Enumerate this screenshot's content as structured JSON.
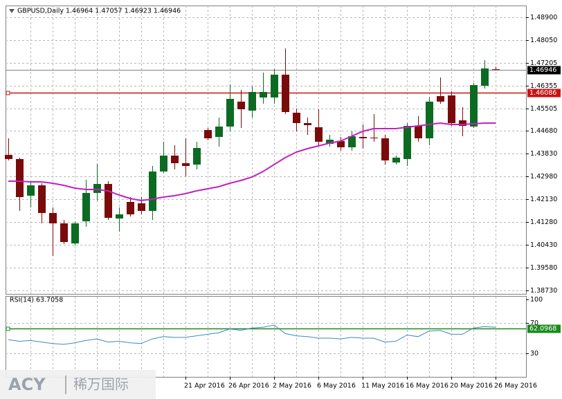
{
  "chart_data": {
    "type": "candlestick",
    "title": "GBPUSD,Daily  1.46964 1.47057 1.46923 1.46946",
    "categories": [
      null,
      null,
      null,
      null,
      null,
      null,
      null,
      null,
      null,
      null,
      null,
      null,
      null,
      null,
      null,
      null,
      "21 Apr 2016",
      null,
      null,
      null,
      "26 Apr 2016",
      null,
      null,
      null,
      "2 May 2016",
      null,
      null,
      null,
      "6 May 2016",
      null,
      null,
      null,
      "11 May 2016",
      null,
      null,
      null,
      "16 May 2016",
      null,
      null,
      null,
      "20 May 2016",
      null,
      null,
      null,
      "26 May 2016"
    ],
    "open": [
      1.43774,
      1.4362,
      1.42254,
      1.42641,
      1.4161,
      1.41224,
      1.40477,
      1.41301,
      1.42357,
      1.42692,
      1.41404,
      1.42023,
      1.41971,
      1.41688,
      1.43156,
      1.43748,
      1.43465,
      1.43414,
      1.44701,
      1.44444,
      1.4483,
      1.45758,
      1.45423,
      1.45912,
      1.45912,
      1.46762,
      1.45345,
      1.44959,
      1.44804,
      1.44186,
      1.44289,
      1.44057,
      1.44444,
      1.44418,
      1.44392,
      1.43491,
      1.4362,
      1.44856,
      1.44392,
      1.45964,
      1.45989,
      1.45062,
      1.4483,
      1.4635,
      1.46964
    ],
    "high": [
      1.44392,
      1.43671,
      1.42795,
      1.42718,
      1.41817,
      1.41353,
      1.41301,
      1.42847,
      1.43439,
      1.42795,
      1.41817,
      1.42203,
      1.42203,
      1.43362,
      1.44264,
      1.44135,
      1.44392,
      1.44264,
      1.44779,
      1.45165,
      1.46401,
      1.46195,
      1.46324,
      1.46839,
      1.46968,
      1.47741,
      1.455,
      1.45165,
      1.45474,
      1.44521,
      1.44444,
      1.4465,
      1.44908,
      1.45294,
      1.44521,
      1.43748,
      1.44959,
      1.45217,
      1.45938,
      1.46659,
      1.46144,
      1.45551,
      1.46453,
      1.47303,
      1.47057
    ],
    "low": [
      1.43568,
      1.41688,
      1.41817,
      1.41224,
      1.40013,
      1.40451,
      1.404,
      1.41095,
      1.42074,
      1.41353,
      1.40915,
      1.41482,
      1.41559,
      1.41353,
      1.43104,
      1.43233,
      1.42976,
      1.43233,
      1.44315,
      1.44083,
      1.4465,
      1.44779,
      1.45165,
      1.4568,
      1.4568,
      1.45294,
      1.4465,
      1.44521,
      1.44135,
      1.44083,
      1.43929,
      1.43929,
      1.44006,
      1.44264,
      1.43414,
      1.43414,
      1.43362,
      1.44264,
      1.44135,
      1.4568,
      1.44856,
      1.4447,
      1.44779,
      1.46247,
      1.46923
    ],
    "close": [
      1.4362,
      1.42203,
      1.42641,
      1.4161,
      1.41224,
      1.40529,
      1.41224,
      1.42357,
      1.42692,
      1.4143,
      1.41559,
      1.41559,
      1.41688,
      1.43156,
      1.43748,
      1.43465,
      1.43362,
      1.44032,
      1.44392,
      1.4483,
      1.45861,
      1.45474,
      1.46118,
      1.46118,
      1.46762,
      1.45371,
      1.44959,
      1.44882,
      1.44264,
      1.44341,
      1.44057,
      1.4447,
      1.44392,
      1.44392,
      1.43568,
      1.43671,
      1.44856,
      1.44392,
      1.45758,
      1.45758,
      1.44959,
      1.44856,
      1.46376,
      1.46994,
      1.46946
    ],
    "up_color": "#0b6b22",
    "down_color": "#7b0a0a",
    "ma": {
      "color": "#c21fc2",
      "values": [
        1.42795,
        1.42795,
        1.42769,
        1.42769,
        1.42718,
        1.42641,
        1.42538,
        1.42486,
        1.42486,
        1.42435,
        1.4228,
        1.42151,
        1.42074,
        1.42126,
        1.42203,
        1.42254,
        1.42332,
        1.42435,
        1.42512,
        1.42589,
        1.42718,
        1.42821,
        1.4295,
        1.43156,
        1.43414,
        1.43671,
        1.43877,
        1.44006,
        1.44109,
        1.44212,
        1.44289,
        1.4447,
        1.4465,
        1.44753,
        1.44753,
        1.44753,
        1.44804,
        1.44856,
        1.44908,
        1.44959,
        1.44908,
        1.44908,
        1.44933,
        1.44959,
        1.44959
      ]
    },
    "ylim": [
      1.38597,
      1.49338
    ],
    "yticks": [
      {
        "value": 1.489,
        "label": "1.48900"
      },
      {
        "value": 1.4805,
        "label": "1.48050"
      },
      1.47205,
      1.46355,
      1.45505,
      {
        "value": 1.4468,
        "label": "1.44680"
      },
      {
        "value": 1.4383,
        "label": "1.43830"
      },
      {
        "value": 1.4298,
        "label": "1.42980"
      },
      {
        "value": 1.4213,
        "label": "1.42130"
      },
      {
        "value": 1.4128,
        "label": "1.41280"
      },
      {
        "value": 1.4043,
        "label": "1.40430"
      },
      {
        "value": 1.3958,
        "label": "1.39580"
      },
      {
        "value": 1.3873,
        "label": "1.38730"
      }
    ],
    "grid": true,
    "level": {
      "value": 1.46086,
      "label": "1.46086",
      "color": "#cc1111"
    },
    "price_line": {
      "value": 1.46946,
      "label": "1.46946"
    },
    "rsi": {
      "title": "RSI(14) 63.7058",
      "color": "#3d86c6",
      "ylim": [
        0,
        100
      ],
      "yticks": [
        100,
        70,
        30
      ],
      "level": {
        "value": 62.0968,
        "label": "62.0968",
        "color": "#1b8a1b"
      },
      "values": [
        48,
        46,
        47,
        45,
        43,
        42,
        44,
        47,
        49,
        45,
        46,
        44,
        43,
        49,
        52,
        51,
        51,
        53,
        55,
        57,
        62,
        60,
        63,
        64,
        67,
        56,
        53,
        52,
        50,
        50,
        49,
        51,
        50,
        50,
        45,
        46,
        54,
        52,
        59,
        60,
        55,
        55,
        63,
        65,
        64
      ]
    },
    "watermark": {
      "brand": "ACY",
      "name": "稀万国际"
    }
  }
}
